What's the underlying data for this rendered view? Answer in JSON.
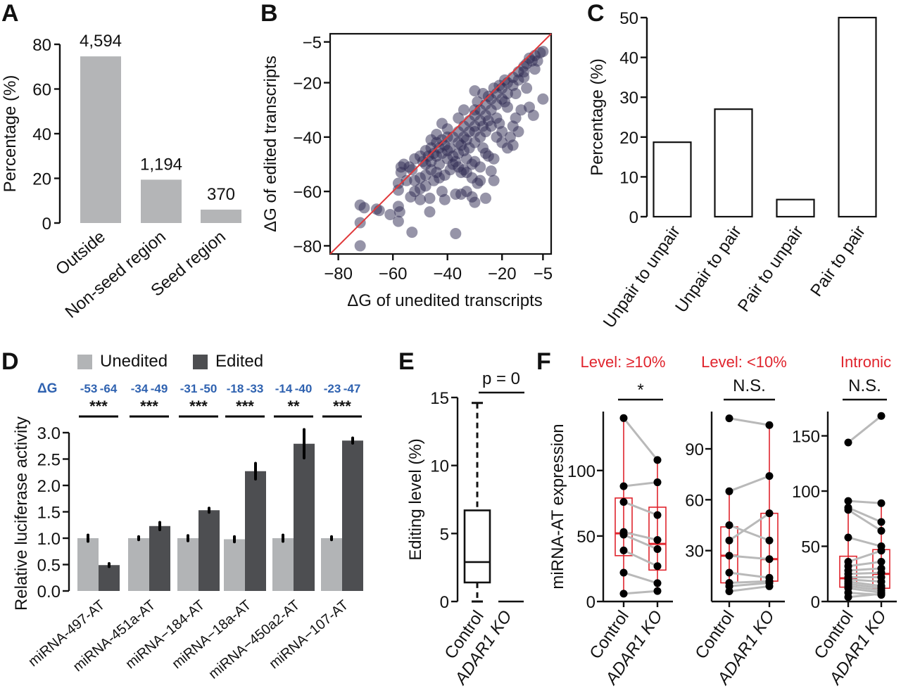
{
  "chart_data": [
    {
      "panel": "A",
      "type": "bar",
      "categories": [
        "Outside",
        "Non-seed region",
        "Seed region"
      ],
      "values": [
        74.6,
        19.4,
        6.0
      ],
      "data_labels": [
        "4,594",
        "1,194",
        "370"
      ],
      "ylabel": "Percentage (%)",
      "xlabel": "",
      "ylim": [
        0,
        80
      ],
      "yticks": [
        0,
        20,
        40,
        60,
        80
      ],
      "bar_color": "#b4b5b7"
    },
    {
      "panel": "B",
      "type": "scatter",
      "xlabel": "ΔG of unedited transcripts",
      "ylabel": "ΔG of edited transcripts",
      "xlim": [
        -83,
        -2
      ],
      "ylim": [
        -83,
        -2
      ],
      "xticks": [
        -80,
        -60,
        -40,
        -20,
        -5
      ],
      "yticks": [
        -80,
        -60,
        -40,
        -20,
        -5
      ],
      "point_color": "#2e2a52",
      "identity_line_color": "#e0393b",
      "points": [
        [
          -72,
          -65
        ],
        [
          -70.5,
          -66
        ],
        [
          -72,
          -71.5
        ],
        [
          -72,
          -80
        ],
        [
          -66,
          -66.5
        ],
        [
          -65,
          -67
        ],
        [
          -61,
          -68.5
        ],
        [
          -58,
          -65.5
        ],
        [
          -57.5,
          -67.5
        ],
        [
          -58,
          -71
        ],
        [
          -53,
          -75
        ],
        [
          -37,
          -75.5
        ],
        [
          -52,
          -60
        ],
        [
          -53.5,
          -62
        ],
        [
          -50,
          -63
        ],
        [
          -46.5,
          -62.5
        ],
        [
          -46.5,
          -67.5
        ],
        [
          -42,
          -60
        ],
        [
          -41,
          -63
        ],
        [
          -37,
          -61
        ],
        [
          -35,
          -61
        ],
        [
          -33,
          -60
        ],
        [
          -31,
          -62
        ],
        [
          -30,
          -64
        ],
        [
          -26,
          -62.5
        ],
        [
          -29,
          -57
        ],
        [
          -31,
          -55
        ],
        [
          -28,
          -51
        ],
        [
          -24,
          -52.5
        ],
        [
          -23,
          -56
        ],
        [
          -28,
          -56
        ],
        [
          -33,
          -53
        ],
        [
          -35,
          -53
        ],
        [
          -38,
          -50
        ],
        [
          -40,
          -48
        ],
        [
          -43,
          -50
        ],
        [
          -46,
          -52
        ],
        [
          -48,
          -54
        ],
        [
          -50,
          -55
        ],
        [
          -52,
          -56
        ],
        [
          -55,
          -56
        ],
        [
          -58,
          -57
        ],
        [
          -58,
          -59.5
        ],
        [
          -57,
          -53
        ],
        [
          -57,
          -51
        ],
        [
          -56,
          -50
        ],
        [
          -54,
          -51
        ],
        [
          -52,
          -48
        ],
        [
          -50,
          -47
        ],
        [
          -48,
          -45
        ],
        [
          -46,
          -44
        ],
        [
          -44,
          -42
        ],
        [
          -42,
          -41
        ],
        [
          -40,
          -40
        ],
        [
          -38,
          -40
        ],
        [
          -36,
          -38
        ],
        [
          -34,
          -36
        ],
        [
          -32,
          -34
        ],
        [
          -30,
          -32
        ],
        [
          -28,
          -30
        ],
        [
          -26,
          -28
        ],
        [
          -24,
          -26
        ],
        [
          -22,
          -24
        ],
        [
          -20,
          -22
        ],
        [
          -18,
          -20
        ],
        [
          -16,
          -18
        ],
        [
          -14,
          -16
        ],
        [
          -12,
          -14
        ],
        [
          -10,
          -11
        ],
        [
          -8,
          -10
        ],
        [
          -6,
          -9
        ],
        [
          -5,
          -8.5
        ],
        [
          -9,
          -12
        ],
        [
          -11,
          -13
        ],
        [
          -12,
          -16
        ],
        [
          -14,
          -19
        ],
        [
          -16,
          -21
        ],
        [
          -15,
          -24
        ],
        [
          -18,
          -24
        ],
        [
          -19,
          -27
        ],
        [
          -5,
          -26
        ],
        [
          -8.5,
          -32
        ],
        [
          -10,
          -29
        ],
        [
          -13,
          -30
        ],
        [
          -15,
          -33
        ],
        [
          -16,
          -36
        ],
        [
          -17,
          -40
        ],
        [
          -20,
          -38
        ],
        [
          -22,
          -40
        ],
        [
          -18,
          -44
        ],
        [
          -21,
          -35
        ],
        [
          -24,
          -36
        ],
        [
          -26,
          -38
        ],
        [
          -28,
          -40
        ],
        [
          -30,
          -42
        ],
        [
          -32,
          -44
        ],
        [
          -34,
          -45
        ],
        [
          -36,
          -46
        ],
        [
          -38,
          -47
        ],
        [
          -40,
          -45
        ],
        [
          -42,
          -46
        ],
        [
          -44,
          -47
        ],
        [
          -46,
          -49
        ],
        [
          -48,
          -50
        ],
        [
          -36,
          -42
        ],
        [
          -34,
          -40
        ],
        [
          -32,
          -38
        ],
        [
          -30,
          -36
        ],
        [
          -28,
          -34
        ],
        [
          -26,
          -32
        ],
        [
          -24,
          -30
        ],
        [
          -22,
          -28
        ],
        [
          -20,
          -26
        ],
        [
          -18,
          -29
        ],
        [
          -22,
          -33
        ],
        [
          -25,
          -34
        ],
        [
          -27,
          -36
        ],
        [
          -30,
          -38
        ],
        [
          -33,
          -41
        ],
        [
          -35,
          -43
        ],
        [
          -39,
          -44
        ],
        [
          -41,
          -43
        ],
        [
          -43,
          -44
        ],
        [
          -45,
          -46
        ],
        [
          -47,
          -47
        ],
        [
          -49,
          -49
        ],
        [
          -44,
          -39
        ],
        [
          -40,
          -37
        ],
        [
          -36,
          -33
        ],
        [
          -30,
          -30
        ],
        [
          -25,
          -25
        ],
        [
          -21,
          -21
        ],
        [
          -30,
          -23
        ],
        [
          -42,
          -35
        ],
        [
          -46,
          -41
        ],
        [
          -34,
          -30
        ],
        [
          -29,
          -27
        ],
        [
          -27,
          -24
        ],
        [
          -23,
          -22
        ],
        [
          -19,
          -19
        ],
        [
          -12,
          -18
        ],
        [
          -11,
          -22
        ],
        [
          -8,
          -15
        ],
        [
          -7,
          -12
        ],
        [
          -27,
          -44
        ],
        [
          -25,
          -47
        ],
        [
          -23,
          -48
        ],
        [
          -30,
          -49
        ],
        [
          -33,
          -48
        ],
        [
          -37,
          -49
        ],
        [
          -39,
          -52
        ],
        [
          -41,
          -54
        ],
        [
          -43,
          -55
        ],
        [
          -36,
          -51
        ],
        [
          -34,
          -52
        ],
        [
          -31,
          -50
        ],
        [
          -26,
          -46
        ],
        [
          -20,
          -42
        ],
        [
          -16,
          -43
        ],
        [
          -14,
          -38
        ],
        [
          -48,
          -58
        ],
        [
          -45,
          -56
        ],
        [
          -50,
          -59
        ],
        [
          -53,
          -52
        ],
        [
          -44,
          -53
        ]
      ]
    },
    {
      "panel": "C",
      "type": "bar",
      "categories": [
        "Unpair to unpair",
        "Unpair to pair",
        "Pair to unpair",
        "Pair to pair"
      ],
      "values": [
        18.7,
        27.0,
        4.3,
        50.0
      ],
      "ylabel": "Percentage (%)",
      "xlabel": "",
      "ylim": [
        0,
        50
      ],
      "yticks": [
        0,
        10,
        20,
        30,
        40,
        50
      ],
      "bar_fill": "#ffffff",
      "bar_stroke": "#111111"
    },
    {
      "panel": "D",
      "type": "bar",
      "categories": [
        "miRNA-497-AT",
        "miRNA-451a-AT",
        "miRNA−184-AT",
        "miRNA−18a-AT",
        "miRNA−450a2-AT",
        "miRNA−107-AT"
      ],
      "series": [
        {
          "name": "Unedited",
          "color": "#b2b4b6",
          "values": [
            1.0,
            1.0,
            1.0,
            0.98,
            1.0,
            1.0
          ],
          "errors": [
            0.06,
            0.03,
            0.05,
            0.05,
            0.06,
            0.03
          ]
        },
        {
          "name": "Edited",
          "color": "#4d4e51",
          "values": [
            0.49,
            1.23,
            1.53,
            2.27,
            2.79,
            2.85
          ],
          "errors": [
            0.03,
            0.07,
            0.04,
            0.15,
            0.27,
            0.05
          ]
        }
      ],
      "delta_g_label": "ΔG",
      "delta_g": [
        [
          "-53",
          "-64"
        ],
        [
          "-34",
          "-49"
        ],
        [
          "-31",
          "-50"
        ],
        [
          "-18",
          "-33"
        ],
        [
          "-14",
          "-40"
        ],
        [
          "-23",
          "-47"
        ]
      ],
      "significance": [
        "***",
        "***",
        "***",
        "***",
        "**",
        "***"
      ],
      "ylabel": "Relative luciferase activity",
      "ylim": [
        0,
        3.0
      ],
      "yticks": [
        "0.0",
        "0.5",
        "1.0",
        "1.5",
        "2.0",
        "2.5",
        "3.0"
      ],
      "legend": [
        "Unedited",
        "Edited"
      ],
      "legend_position": "top"
    },
    {
      "panel": "E",
      "type": "box",
      "categories": [
        "Control",
        "ADAR1 KO"
      ],
      "boxes": [
        {
          "whisker_low": 0,
          "q1": 1.4,
          "median": 2.9,
          "q3": 6.7,
          "whisker_high": 14.6
        },
        {
          "whisker_low": 0,
          "q1": 0,
          "median": 0,
          "q3": 0,
          "whisker_high": 0
        }
      ],
      "ylabel": "Editing level (%)",
      "ylim": [
        0,
        15
      ],
      "yticks": [
        0,
        5,
        10,
        15
      ],
      "annotation": "p = 0"
    },
    {
      "panel": "F",
      "type": "box",
      "ylabel": "miRNA-AT expression",
      "categories": [
        "Control",
        "ADAR1 KO"
      ],
      "box_color": "#e0242d",
      "line_color": "#b9b9b9",
      "subplots": [
        {
          "title": "Level: ≥10%",
          "significance": "*",
          "ylim": [
            0,
            145
          ],
          "yticks": [
            0,
            50,
            100
          ],
          "pairs": [
            [
              140,
              108
            ],
            [
              88,
              91
            ],
            [
              76,
              66
            ],
            [
              53,
              47
            ],
            [
              51,
              40
            ],
            [
              39,
              27
            ],
            [
              22,
              14
            ],
            [
              6,
              8
            ]
          ],
          "boxes": [
            {
              "q1": 35,
              "median": 52,
              "q3": 79,
              "low": 6,
              "high": 140
            },
            {
              "q1": 24,
              "median": 44,
              "q3": 72,
              "low": 8,
              "high": 108
            }
          ]
        },
        {
          "title": "Level: <10%",
          "significance": "N.S.",
          "ylim": [
            0,
            112
          ],
          "yticks": [
            30,
            60,
            90
          ],
          "pairs": [
            [
              108,
              104
            ],
            [
              65,
              74
            ],
            [
              45,
              36
            ],
            [
              36,
              52
            ],
            [
              27,
              25
            ],
            [
              17,
              14
            ],
            [
              11,
              12
            ],
            [
              9,
              11
            ],
            [
              6,
              9
            ]
          ],
          "boxes": [
            {
              "q1": 11,
              "median": 27,
              "q3": 44,
              "low": 6,
              "high": 65
            },
            {
              "q1": 12,
              "median": 25,
              "q3": 52,
              "low": 9,
              "high": 104
            }
          ]
        },
        {
          "title": "Intronic",
          "significance": "N.S.",
          "ylim": [
            0,
            172
          ],
          "yticks": [
            0,
            50,
            100,
            150
          ],
          "pairs": [
            [
              144,
              168
            ],
            [
              91,
              89
            ],
            [
              85,
              72
            ],
            [
              83,
              64
            ],
            [
              58,
              50
            ],
            [
              36,
              46
            ],
            [
              32,
              36
            ],
            [
              28,
              30
            ],
            [
              25,
              26
            ],
            [
              22,
              22
            ],
            [
              20,
              18
            ],
            [
              18,
              14
            ],
            [
              16,
              12
            ],
            [
              14,
              10
            ],
            [
              12,
              8
            ],
            [
              8,
              6
            ],
            [
              4,
              7
            ]
          ],
          "boxes": [
            {
              "q1": 13,
              "median": 21,
              "q3": 41,
              "low": 4,
              "high": 91
            },
            {
              "q1": 12,
              "median": 25,
              "q3": 47,
              "low": 6,
              "high": 89
            }
          ]
        }
      ]
    }
  ],
  "panels": {
    "A": {
      "letter": "A"
    },
    "B": {
      "letter": "B"
    },
    "C": {
      "letter": "C"
    },
    "D": {
      "letter": "D"
    },
    "E": {
      "letter": "E"
    },
    "F": {
      "letter": "F"
    }
  }
}
